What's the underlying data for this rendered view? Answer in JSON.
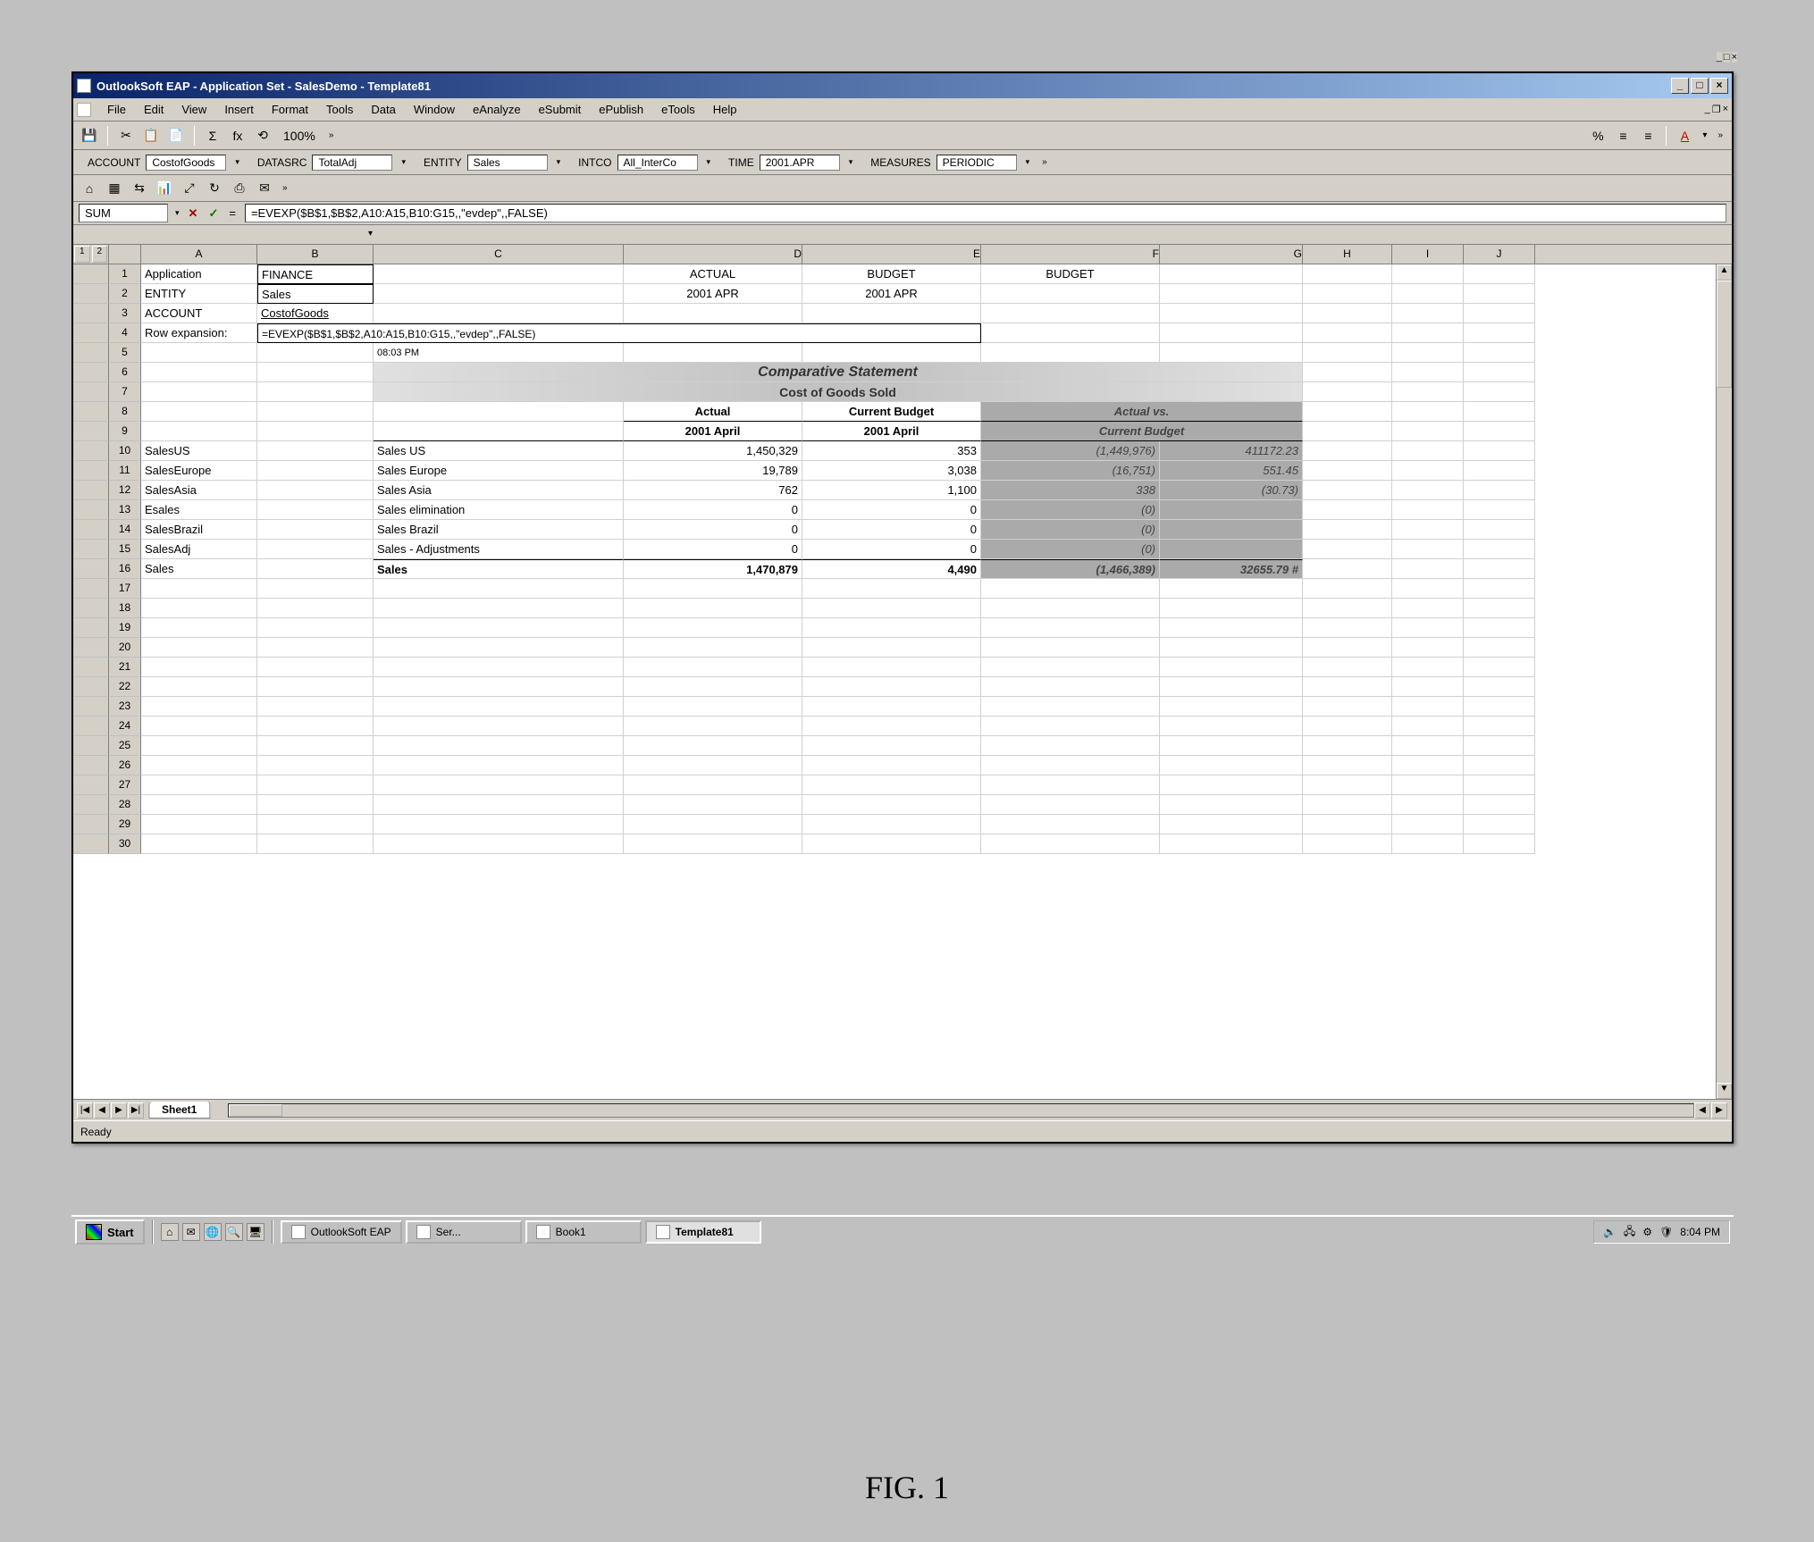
{
  "outer_window": {
    "min_label": "_",
    "max_label": "□",
    "close_label": "×"
  },
  "titlebar": {
    "title": "OutlookSoft EAP - Application Set - SalesDemo - Template81",
    "min_label": "_",
    "max_label": "□",
    "close_label": "×"
  },
  "menu": {
    "items": [
      "File",
      "Edit",
      "View",
      "Insert",
      "Format",
      "Tools",
      "Data",
      "Window",
      "eAnalyze",
      "eSubmit",
      "ePublish",
      "eTools",
      "Help"
    ],
    "mdi": {
      "min": "_",
      "restore": "❐",
      "close": "×"
    }
  },
  "toolbar1": {
    "icons": [
      "💾",
      "✂",
      "📋",
      "📄",
      "Σ",
      "fx",
      "⟲",
      "100%"
    ],
    "chevron": "»"
  },
  "toolbar_right": {
    "pct_glyph": "%",
    "inc_glyph": "≡",
    "dec_glyph": "≡",
    "chevron": "»",
    "font_glyph": "A",
    "dd": "▾"
  },
  "dimensions": {
    "account": {
      "label": "ACCOUNT",
      "value": "CostofGoods"
    },
    "datasrc": {
      "label": "DATASRC",
      "value": "TotalAdj"
    },
    "entity": {
      "label": "ENTITY",
      "value": "Sales"
    },
    "intco": {
      "label": "INTCO",
      "value": "All_InterCo"
    },
    "time": {
      "label": "TIME",
      "value": "2001.APR"
    },
    "measures": {
      "label": "MEASURES",
      "value": "PERIODIC"
    },
    "dd": "▾",
    "chevron": "»"
  },
  "icon_toolbar": {
    "icons": [
      "⌂",
      "▦",
      "⇆",
      "📊",
      "⤢",
      "↻",
      "⎙",
      "✉"
    ],
    "chevron": "»"
  },
  "formula": {
    "name_box": "SUM",
    "cancel": "✕",
    "accept": "✓",
    "eq": "=",
    "fx": "fx",
    "formula_text": "=EVEXP($B$1,$B$2,A10:A15,B10:G15,,\"evdep\",,FALSE)",
    "dd": "▾"
  },
  "spacer": {
    "dd": "▾"
  },
  "columns": [
    "A",
    "B",
    "C",
    "D",
    "E",
    "F",
    "G",
    "H",
    "I",
    "J"
  ],
  "outline": {
    "btn1": "1",
    "btn2": "2"
  },
  "meta_rows": {
    "r1": {
      "label": "Application",
      "value": "FINANCE"
    },
    "r2": {
      "label": "ENTITY",
      "value": "Sales"
    },
    "r3": {
      "label": "ACCOUNT",
      "value": "CostofGoods"
    },
    "r4": {
      "label": "Row expansion:",
      "value": "=EVEXP($B$1,$B$2,A10:A15,B10:G15,,\"evdep\",,FALSE)"
    },
    "col_d1": "ACTUAL",
    "col_e1": "BUDGET",
    "col_f1": "BUDGET",
    "col_d2": "2001 APR",
    "col_e2": "2001 APR",
    "timestamp": "08:03 PM"
  },
  "report": {
    "title": "Comparative Statement",
    "subtitle": "Cost of Goods Sold",
    "headers": {
      "actual": "Actual",
      "budget": "Current Budget",
      "variance": "Actual vs.",
      "variance2": "Current Budget",
      "period_actual": "2001 April",
      "period_budget": "2001 April"
    },
    "rows": [
      {
        "code": "SalesUS",
        "name": "Sales US",
        "actual": "1,450,329",
        "budget": "353",
        "var": "(1,449,976)",
        "pct": "411172.23"
      },
      {
        "code": "SalesEurope",
        "name": "Sales Europe",
        "actual": "19,789",
        "budget": "3,038",
        "var": "(16,751)",
        "pct": "551.45"
      },
      {
        "code": "SalesAsia",
        "name": "Sales Asia",
        "actual": "762",
        "budget": "1,100",
        "var": "338",
        "pct": "(30.73)"
      },
      {
        "code": "Esales",
        "name": "Sales elimination",
        "actual": "0",
        "budget": "0",
        "var": "(0)",
        "pct": ""
      },
      {
        "code": "SalesBrazil",
        "name": "Sales Brazil",
        "actual": "0",
        "budget": "0",
        "var": "(0)",
        "pct": ""
      },
      {
        "code": "SalesAdj",
        "name": "Sales - Adjustments",
        "actual": "0",
        "budget": "0",
        "var": "(0)",
        "pct": ""
      }
    ],
    "total": {
      "code": "Sales",
      "name": "Sales",
      "actual": "1,470,879",
      "budget": "4,490",
      "var": "(1,466,389)",
      "pct": "32655.79 #"
    }
  },
  "row_numbers": [
    "1",
    "2",
    "3",
    "4",
    "5",
    "6",
    "7",
    "8",
    "9",
    "10",
    "11",
    "12",
    "13",
    "14",
    "15",
    "16",
    "17",
    "18",
    "19",
    "20",
    "21",
    "22",
    "23",
    "24",
    "25",
    "26",
    "27",
    "28",
    "29",
    "30"
  ],
  "sheet_tabs": {
    "nav": {
      "first": "|◀",
      "prev": "◀",
      "next": "▶",
      "last": "▶|"
    },
    "tab1": "Sheet1"
  },
  "scroll": {
    "up": "▲",
    "down": "▼",
    "left": "◀",
    "right": "▶"
  },
  "status": {
    "text": "Ready"
  },
  "taskbar": {
    "start": "Start",
    "quick": [
      "⌂",
      "✉",
      "🌐",
      "🔍",
      "🖥"
    ],
    "tasks": [
      {
        "label": "OutlookSoft EAP",
        "active": false
      },
      {
        "label": "Ser...",
        "active": false
      },
      {
        "label": "Book1",
        "active": false
      },
      {
        "label": "Template81",
        "active": true
      }
    ],
    "tray_icons": [
      "🔊",
      "🖧",
      "⚙",
      "🛡"
    ],
    "clock": "8:04 PM"
  },
  "figure": {
    "label": "FIG. 1"
  }
}
